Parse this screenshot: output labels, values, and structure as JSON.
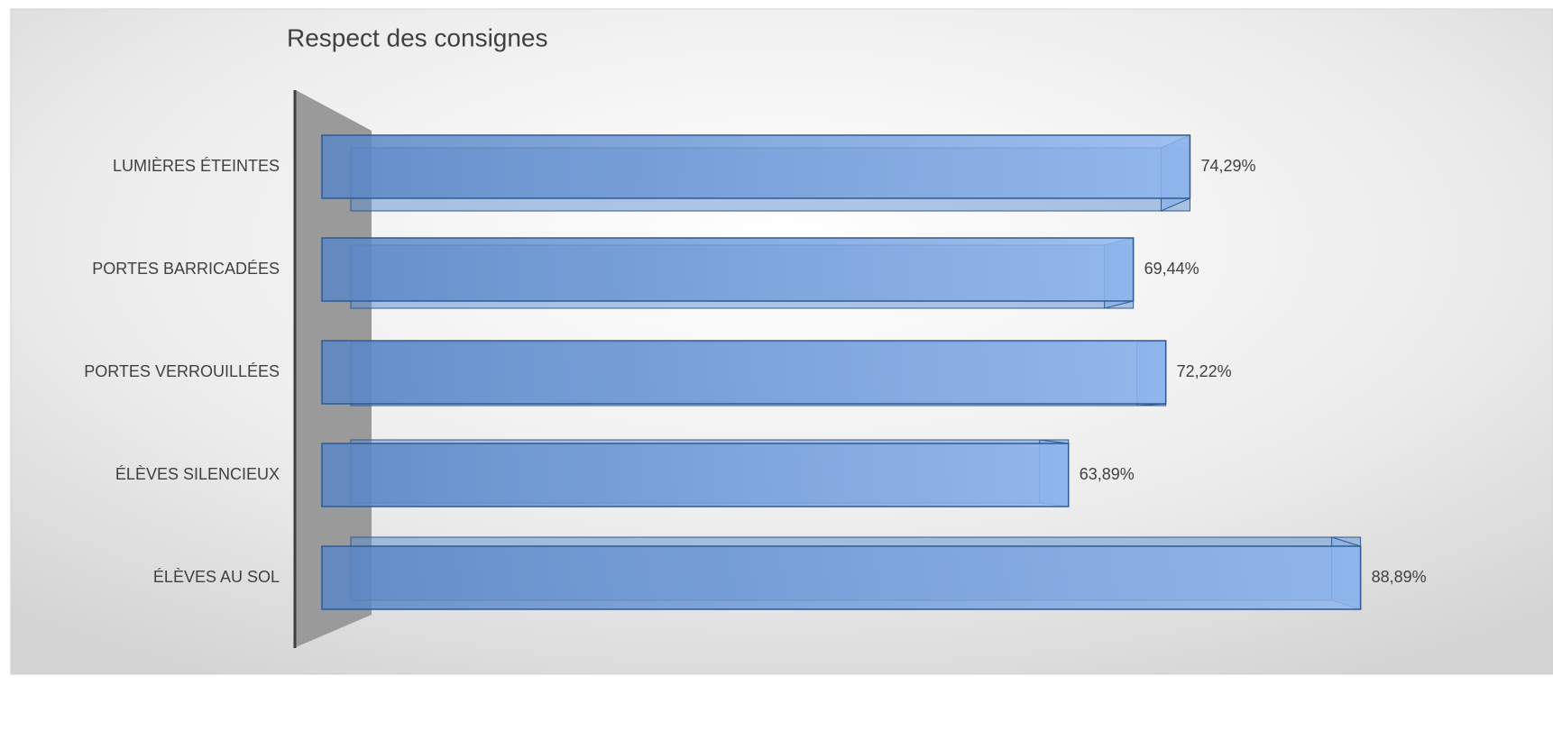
{
  "chart_data": {
    "type": "bar3d_horizontal",
    "title": "Respect des consignes",
    "categories": [
      "LUMIÈRES ÉTEINTES",
      "PORTES BARRICADÉES",
      "PORTES VERROUILLÉES",
      "ÉLÈVES SILENCIEUX",
      "ÉLÈVES AU SOL"
    ],
    "values": [
      74.29,
      69.44,
      72.22,
      63.89,
      88.89
    ],
    "value_labels": [
      "74,29%",
      "69,44%",
      "72,22%",
      "63,89%",
      "88,89%"
    ],
    "color": "#5b8bd0",
    "xlim": [
      0,
      90
    ]
  }
}
